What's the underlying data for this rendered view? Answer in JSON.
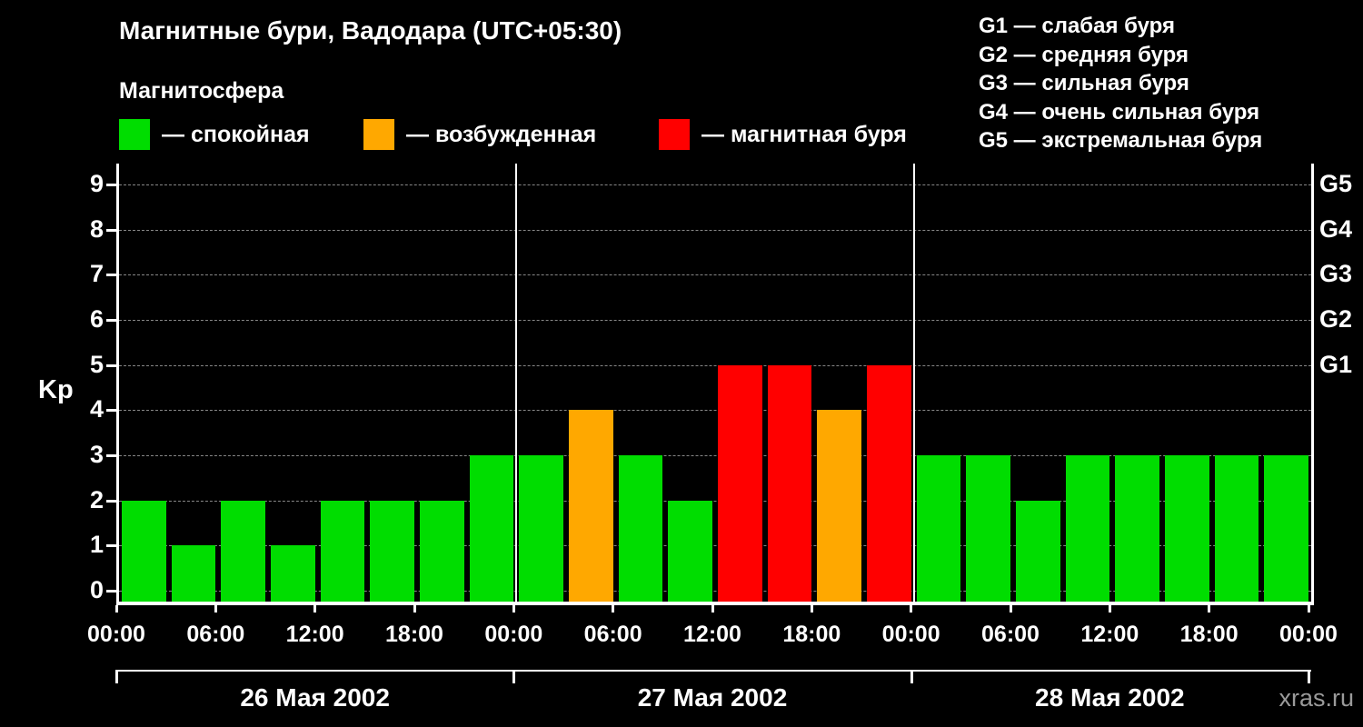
{
  "header": {
    "title": "Магнитные бури, Вадодара (UTC+05:30)",
    "subtitle": "Магнитосфера"
  },
  "legend": {
    "items": [
      {
        "swatch": "green",
        "color": "#00dd00",
        "label": "— спокойная"
      },
      {
        "swatch": "orange",
        "color": "#ffa800",
        "label": "— возбужденная"
      },
      {
        "swatch": "red",
        "color": "#ff0000",
        "label": "— магнитная буря"
      }
    ]
  },
  "storm_scale": {
    "items": [
      "G1 — слабая буря",
      "G2 — средняя буря",
      "G3 — сильная буря",
      "G4 — очень сильная буря",
      "G5 — экстремальная буря"
    ]
  },
  "colors": {
    "quiet": "#00dd00",
    "excited": "#ffa800",
    "storm": "#ff0000",
    "background": "#000000",
    "grid": "#878787",
    "axis": "#ffffff"
  },
  "chart_data": {
    "type": "bar",
    "title": "Магнитные бури, Вадодара (UTC+05:30)",
    "subtitle": "Магнитосфера",
    "ylabel": "Kp",
    "ylim": [
      0,
      9
    ],
    "yticks": [
      0,
      1,
      2,
      3,
      4,
      5,
      6,
      7,
      8,
      9
    ],
    "grid": "dashed horizontal",
    "bar_interval_hours": 3,
    "bar_color_rule": {
      "green_max_kp": 3,
      "orange_kp": 4,
      "red_min_kp": 5
    },
    "xticks": [
      "00:00",
      "06:00",
      "12:00",
      "18:00",
      "00:00",
      "06:00",
      "12:00",
      "18:00",
      "00:00",
      "06:00",
      "12:00",
      "18:00",
      "00:00"
    ],
    "right_labels": [
      {
        "text": "G5",
        "kp": 9
      },
      {
        "text": "G4",
        "kp": 8
      },
      {
        "text": "G3",
        "kp": 7
      },
      {
        "text": "G2",
        "kp": 6
      },
      {
        "text": "G1",
        "kp": 5
      }
    ],
    "days": [
      {
        "date": "26 Мая 2002",
        "values": [
          2,
          1,
          2,
          1,
          2,
          2,
          2,
          3
        ]
      },
      {
        "date": "27 Мая 2002",
        "values": [
          3,
          4,
          3,
          2,
          5,
          5,
          4,
          5
        ]
      },
      {
        "date": "28 Мая 2002",
        "values": [
          3,
          3,
          2,
          3,
          3,
          3,
          3,
          3
        ]
      }
    ]
  },
  "watermark": "xras.ru"
}
